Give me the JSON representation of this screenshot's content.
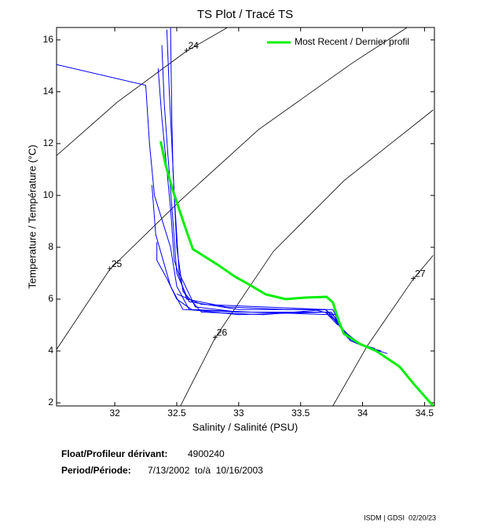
{
  "chart_data": {
    "type": "ts",
    "title": "TS Plot / Tracé TS",
    "x_label": "Salinity / Salinité (PSU)",
    "y_label": "Temperature / Température (°C)",
    "xlim": [
      31.53,
      34.58
    ],
    "ylim": [
      1.88,
      16.48
    ],
    "xticks": [
      32,
      32.5,
      33,
      33.5,
      34,
      34.5
    ],
    "yticks": [
      2,
      4,
      6,
      8,
      10,
      12,
      14,
      16
    ],
    "legend_position": "upper right",
    "contours": [
      {
        "label": "24",
        "color": "#000000",
        "x": [
          31.53,
          32.02,
          32.58,
          32.91
        ],
        "values": [
          11.54,
          13.6,
          15.57,
          16.48
        ]
      },
      {
        "label": "25",
        "color": "#000000",
        "x": [
          31.53,
          31.96,
          32.53,
          33.16,
          33.92,
          34.36
        ],
        "values": [
          4.06,
          7.15,
          9.81,
          12.54,
          15.12,
          16.48
        ]
      },
      {
        "label": "26",
        "color": "#000000",
        "x": [
          32.53,
          32.81,
          33.28,
          33.85,
          34.57
        ],
        "values": [
          1.88,
          4.51,
          7.84,
          10.57,
          13.3
        ]
      },
      {
        "label": "27",
        "color": "#000000",
        "x": [
          33.76,
          34.04,
          34.41,
          34.57
        ],
        "values": [
          1.88,
          4.21,
          6.78,
          7.69
        ]
      }
    ],
    "series": [
      {
        "color": "#0000ff",
        "x": [
          32.42,
          32.44,
          32.46,
          32.48,
          32.52,
          32.65,
          33.0,
          33.5,
          33.75,
          33.8,
          33.88,
          34.0,
          34.15
        ],
        "values": [
          16.4,
          14,
          12,
          10,
          7,
          5.7,
          5.5,
          5.5,
          5.5,
          5.1,
          4.5,
          4.2,
          4.0
        ]
      },
      {
        "color": "#0000ff",
        "x": [
          32.38,
          32.4,
          32.43,
          32.47,
          32.5,
          32.6,
          33.0,
          33.6,
          33.78,
          33.85,
          34.0,
          34.2
        ],
        "values": [
          15.8,
          13.5,
          11.5,
          9,
          7,
          5.9,
          5.6,
          5.6,
          5.4,
          4.7,
          4.2,
          3.9
        ]
      },
      {
        "color": "#0000ff",
        "x": [
          32.45,
          32.46,
          32.47,
          32.5,
          32.55,
          32.7,
          33.2,
          33.7,
          33.82,
          33.9,
          34.05
        ],
        "values": [
          16.5,
          13,
          11,
          8,
          6.3,
          5.5,
          5.4,
          5.6,
          5.0,
          4.4,
          4.1
        ]
      },
      {
        "color": "#0000ff",
        "x": [
          32.35,
          32.38,
          32.4,
          32.45,
          32.48,
          32.58,
          32.9,
          33.4,
          33.76,
          33.83,
          33.95,
          34.1
        ],
        "values": [
          14.9,
          13,
          12,
          9.5,
          7.5,
          6.0,
          5.7,
          5.6,
          5.6,
          4.9,
          4.3,
          4.1
        ]
      },
      {
        "color": "#0000ff",
        "x": [
          32.3,
          32.33,
          32.45,
          32.55,
          33.0,
          33.7,
          33.8,
          33.9
        ],
        "values": [
          10.4,
          8.5,
          6.5,
          5.6,
          5.5,
          5.5,
          5.1,
          4.4
        ]
      },
      {
        "color": "#0000ff",
        "x": [
          32.34,
          32.34,
          32.42,
          32.5,
          32.62,
          33.1,
          33.74,
          33.84,
          34.0
        ],
        "values": [
          8.2,
          7.5,
          6.8,
          6.0,
          5.6,
          5.5,
          5.4,
          4.8,
          4.2
        ]
      },
      {
        "color": "#0000ff",
        "x": [
          31.53,
          32.25,
          32.28,
          32.32,
          32.45,
          32.5,
          32.6,
          33.0,
          33.7,
          33.8
        ],
        "values": [
          15.05,
          14.25,
          12.0,
          10.0,
          8.0,
          6.5,
          5.6,
          5.4,
          5.5,
          5.0
        ]
      },
      {
        "color": "#0000ff",
        "x": [
          32.5,
          32.7,
          33.2,
          33.7,
          33.78,
          33.86
        ],
        "values": [
          6.2,
          5.8,
          5.7,
          5.6,
          5.3,
          4.6
        ]
      },
      {
        "name": "Most Recent / Dernier profil",
        "color": "#00ee00",
        "x": [
          32.37,
          32.41,
          32.47,
          32.57,
          32.63,
          32.84,
          32.97,
          33.06,
          33.22,
          33.38,
          33.54,
          33.71,
          33.76,
          33.81,
          33.85,
          33.98,
          34.11,
          34.3,
          34.42,
          34.57
        ],
        "values": [
          12.09,
          11.18,
          10.18,
          8.75,
          7.93,
          7.3,
          6.87,
          6.63,
          6.18,
          6.0,
          6.06,
          6.09,
          5.87,
          5.12,
          4.66,
          4.27,
          4.0,
          3.39,
          2.69,
          1.88
        ]
      }
    ]
  },
  "info": {
    "float_label": "Float/Profileur dérivant:",
    "float_id": "4900240",
    "period_label": "Period/Période:",
    "period": "7/13/2002  to/à  10/16/2003",
    "credit": "ISDM | GDSI  02/20/23"
  }
}
